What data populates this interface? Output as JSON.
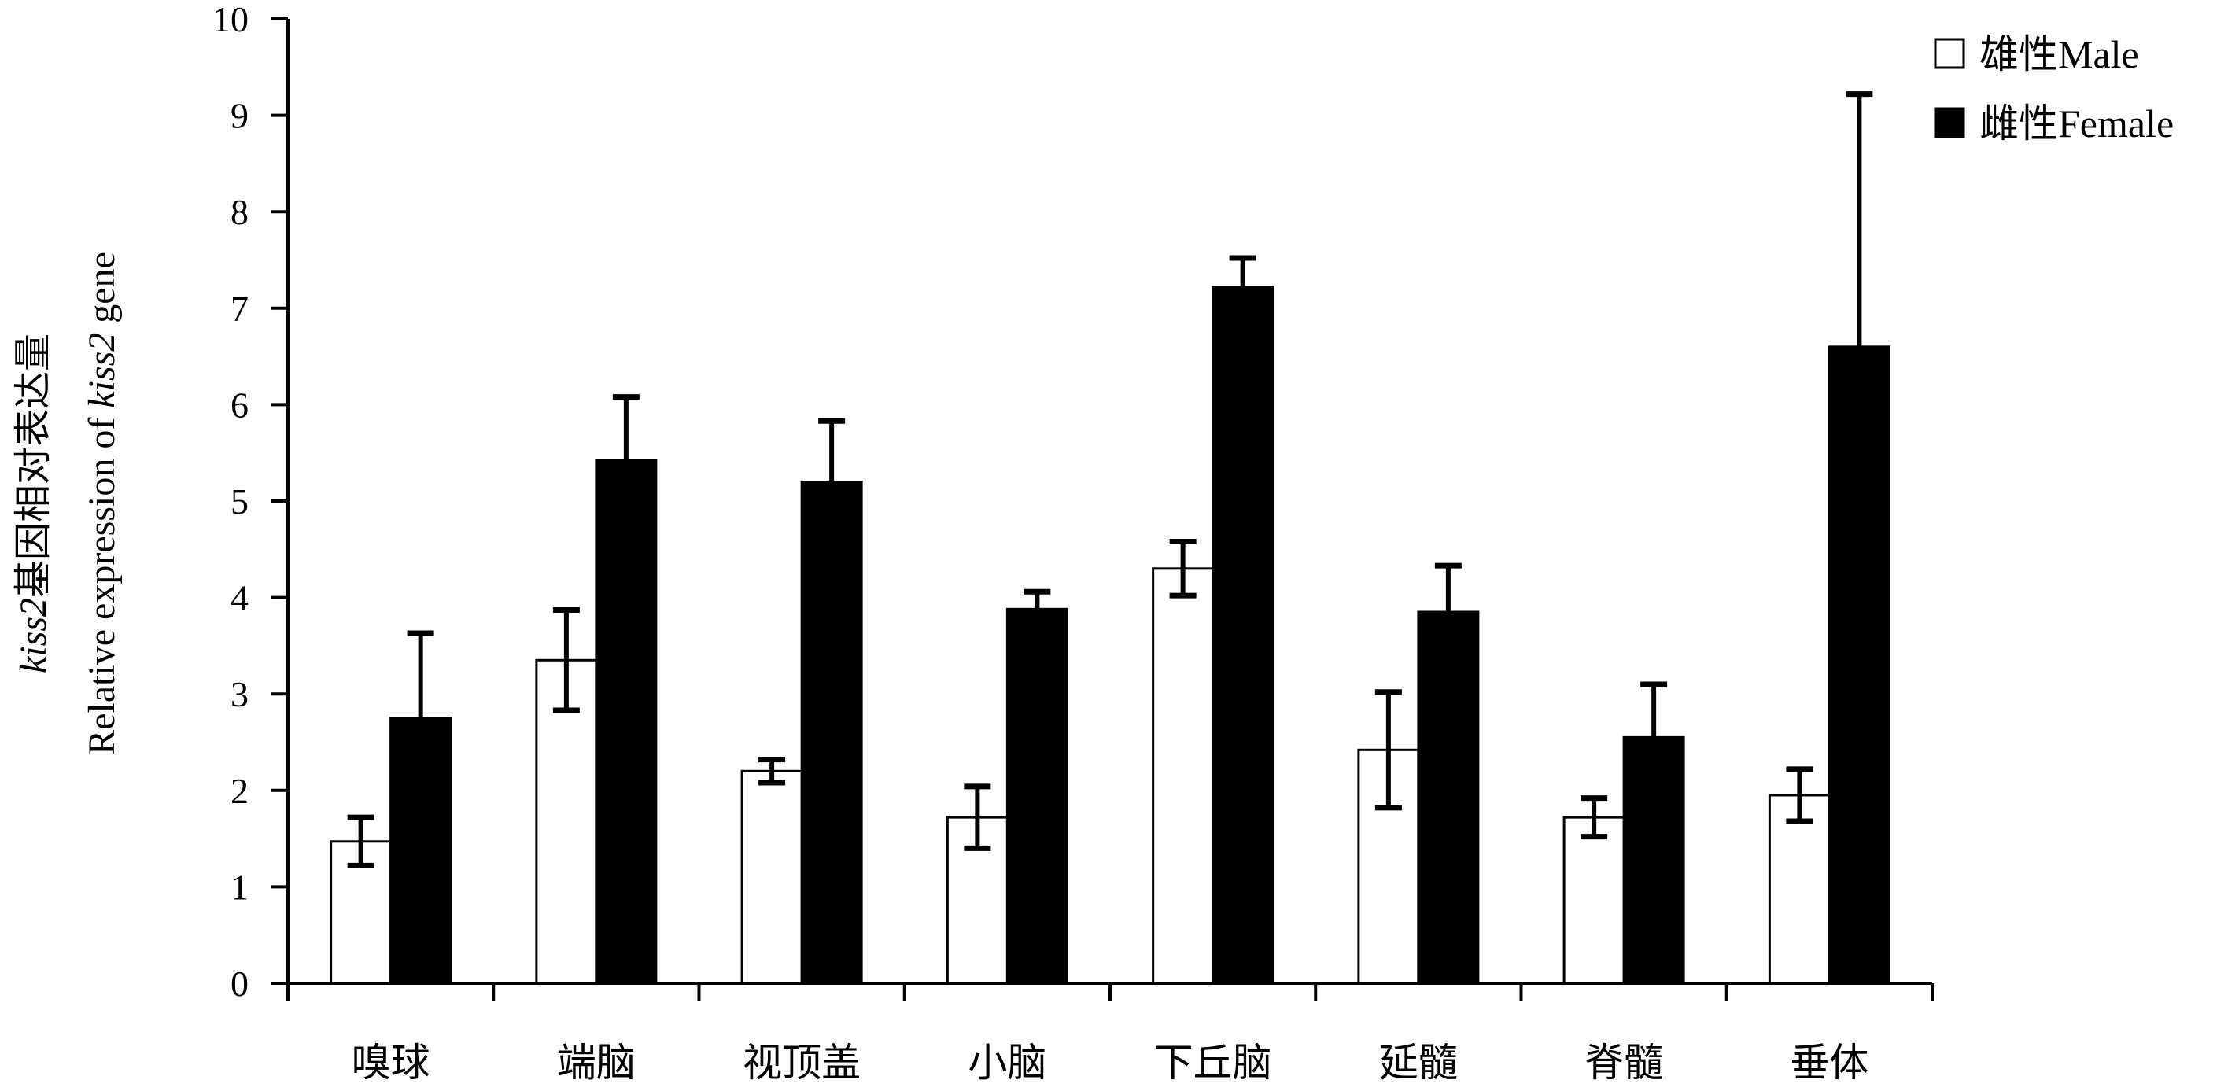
{
  "chart_data": {
    "type": "bar",
    "categories": [
      "嗅球",
      "端脑",
      "视顶盖",
      "小脑",
      "下丘脑",
      "延髓",
      "脊髓",
      "垂体"
    ],
    "series": [
      {
        "name": "雄性Male",
        "values": [
          1.47,
          3.35,
          2.2,
          1.72,
          4.3,
          2.42,
          1.72,
          1.95
        ],
        "errors": [
          0.25,
          0.52,
          0.12,
          0.32,
          0.28,
          0.6,
          0.2,
          0.27
        ],
        "color": "#ffffff"
      },
      {
        "name": "雌性Female",
        "values": [
          2.75,
          5.42,
          5.2,
          3.88,
          7.22,
          3.85,
          2.55,
          6.6
        ],
        "errors": [
          0.88,
          0.66,
          0.63,
          0.18,
          0.3,
          0.48,
          0.55,
          2.62
        ],
        "color": "#000000"
      }
    ],
    "ylim": [
      0,
      10
    ],
    "yticks": [
      "0",
      "1",
      "2",
      "3",
      "4",
      "5",
      "6",
      "7",
      "8",
      "9",
      "10"
    ],
    "ylabel_line1_italic": "kiss2",
    "ylabel_line1_rest": "基因相对表达量",
    "ylabel_line2_start": "Relative expression of ",
    "ylabel_line2_italic": "kiss2",
    "ylabel_line2_end": " gene",
    "legend_position": "top-right",
    "grid": false
  }
}
